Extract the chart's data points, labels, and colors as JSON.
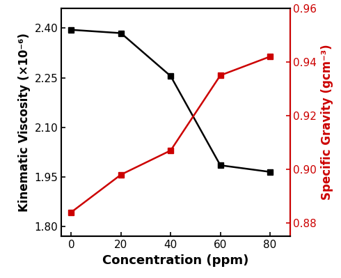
{
  "concentration": [
    0,
    20,
    40,
    60,
    80
  ],
  "kinematic_viscosity": [
    2.395,
    2.385,
    2.255,
    1.985,
    1.965
  ],
  "specific_gravity": [
    0.884,
    0.898,
    0.907,
    0.935,
    0.942
  ],
  "kv_color": "#000000",
  "sg_color": "#cc0000",
  "xlabel": "Concentration (ppm)",
  "ylabel_left": "Kinematic Viscosity (×10⁻⁶)",
  "ylabel_right": "Specific Gravity (gcm⁻³)",
  "xlim": [
    -4,
    88
  ],
  "ylim_left": [
    1.77,
    2.46
  ],
  "ylim_right": [
    0.875,
    0.96
  ],
  "yticks_left": [
    1.8,
    1.95,
    2.1,
    2.25,
    2.4
  ],
  "yticks_right": [
    0.88,
    0.9,
    0.92,
    0.94,
    0.96
  ],
  "xticks": [
    0,
    20,
    40,
    60,
    80
  ],
  "marker": "s",
  "markersize": 6,
  "linewidth": 1.8,
  "xlabel_fontsize": 13,
  "ylabel_fontsize": 12,
  "tick_labelsize": 11,
  "spine_linewidth": 1.5
}
